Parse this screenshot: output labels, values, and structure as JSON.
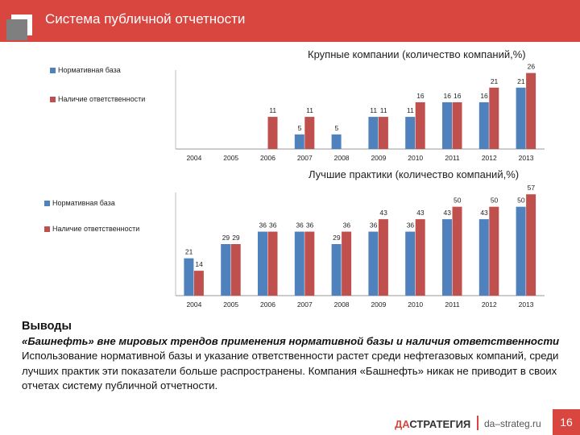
{
  "header": {
    "title": "Система публичной отчетности"
  },
  "chart_data": [
    {
      "type": "bar",
      "title": "Крупные компании (количество компаний,%)",
      "categories": [
        "2004",
        "2005",
        "2006",
        "2007",
        "2008",
        "2009",
        "2010",
        "2011",
        "2012",
        "2013"
      ],
      "series": [
        {
          "name": "Нормативная база",
          "color": "#4f81bd",
          "values": [
            0,
            0,
            0,
            5,
            5,
            11,
            11,
            16,
            16,
            21
          ]
        },
        {
          "name": "Наличие ответственности",
          "color": "#c0504d",
          "values": [
            0,
            0,
            11,
            11,
            0,
            11,
            16,
            16,
            21,
            26
          ]
        }
      ],
      "ylim": [
        0,
        27
      ],
      "legend": "left"
    },
    {
      "type": "bar",
      "title": "Лучшие практики (количество компаний,%)",
      "categories": [
        "2004",
        "2005",
        "2006",
        "2007",
        "2008",
        "2009",
        "2010",
        "2011",
        "2012",
        "2013"
      ],
      "series": [
        {
          "name": "Нормативная база",
          "color": "#4f81bd",
          "values": [
            21,
            29,
            36,
            36,
            29,
            36,
            36,
            43,
            43,
            50
          ]
        },
        {
          "name": "Наличие ответственности",
          "color": "#c0504d",
          "values": [
            14,
            29,
            36,
            36,
            36,
            43,
            43,
            50,
            50,
            57
          ]
        }
      ],
      "ylim": [
        0,
        58
      ],
      "legend": "left"
    }
  ],
  "conclusions": {
    "heading": "Выводы",
    "italic_text": "«Башнефть» вне мировых трендов применения нормативной базы и наличия ответственности",
    "body_text": "Использование нормативной базы и указание ответственности растет среди нефтегазовых компаний, среди лучших практик эти показатели больше распространены. Компания «Башнефть» никак не приводит в своих отчетах систему публичной отчетности."
  },
  "footer": {
    "brand_prefix": "ДА",
    "brand_rest": "СТРАТЕГИЯ",
    "site": "da–strateg.ru",
    "page": "16"
  }
}
